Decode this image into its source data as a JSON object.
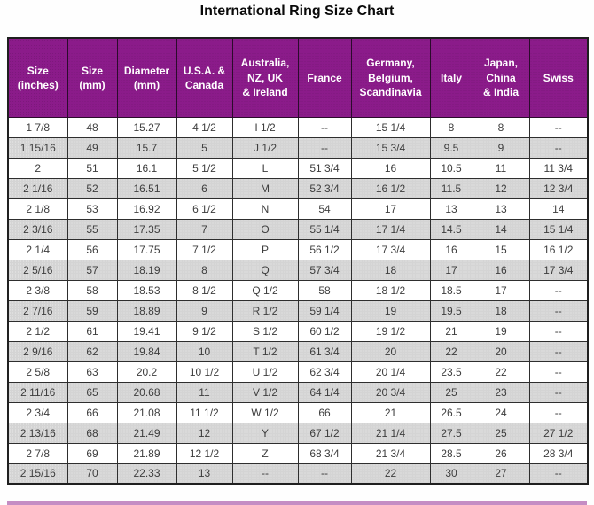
{
  "page_title": "International Ring Size Chart",
  "chart_data": {
    "type": "table",
    "title": "International Ring Size Chart",
    "columns": [
      "Size\n(inches)",
      "Size\n(mm)",
      "Diameter\n(mm)",
      "U.S.A. &\nCanada",
      "Australia,\nNZ, UK\n& Ireland",
      "France",
      "Germany,\nBelgium,\nScandinavia",
      "Italy",
      "Japan,\nChina\n& India",
      "Swiss"
    ],
    "rows": [
      [
        "1 7/8",
        "48",
        "15.27",
        "4 1/2",
        "I 1/2",
        "--",
        "15 1/4",
        "8",
        "8",
        "--"
      ],
      [
        "1 15/16",
        "49",
        "15.7",
        "5",
        "J 1/2",
        "--",
        "15 3/4",
        "9.5",
        "9",
        "--"
      ],
      [
        "2",
        "51",
        "16.1",
        "5 1/2",
        "L",
        "51 3/4",
        "16",
        "10.5",
        "11",
        "11 3/4"
      ],
      [
        "2 1/16",
        "52",
        "16.51",
        "6",
        "M",
        "52 3/4",
        "16 1/2",
        "11.5",
        "12",
        "12 3/4"
      ],
      [
        "2 1/8",
        "53",
        "16.92",
        "6 1/2",
        "N",
        "54",
        "17",
        "13",
        "13",
        "14"
      ],
      [
        "2 3/16",
        "55",
        "17.35",
        "7",
        "O",
        "55 1/4",
        "17 1/4",
        "14.5",
        "14",
        "15 1/4"
      ],
      [
        "2 1/4",
        "56",
        "17.75",
        "7 1/2",
        "P",
        "56 1/2",
        "17 3/4",
        "16",
        "15",
        "16 1/2"
      ],
      [
        "2 5/16",
        "57",
        "18.19",
        "8",
        "Q",
        "57 3/4",
        "18",
        "17",
        "16",
        "17 3/4"
      ],
      [
        "2 3/8",
        "58",
        "18.53",
        "8 1/2",
        "Q 1/2",
        "58",
        "18 1/2",
        "18.5",
        "17",
        "--"
      ],
      [
        "2 7/16",
        "59",
        "18.89",
        "9",
        "R 1/2",
        "59 1/4",
        "19",
        "19.5",
        "18",
        "--"
      ],
      [
        "2 1/2",
        "61",
        "19.41",
        "9 1/2",
        "S 1/2",
        "60 1/2",
        "19 1/2",
        "21",
        "19",
        "--"
      ],
      [
        "2 9/16",
        "62",
        "19.84",
        "10",
        "T 1/2",
        "61 3/4",
        "20",
        "22",
        "20",
        "--"
      ],
      [
        "2 5/8",
        "63",
        "20.2",
        "10 1/2",
        "U 1/2",
        "62 3/4",
        "20 1/4",
        "23.5",
        "22",
        "--"
      ],
      [
        "2 11/16",
        "65",
        "20.68",
        "11",
        "V 1/2",
        "64 1/4",
        "20 3/4",
        "25",
        "23",
        "--"
      ],
      [
        "2 3/4",
        "66",
        "21.08",
        "11 1/2",
        "W 1/2",
        "66",
        "21",
        "26.5",
        "24",
        "--"
      ],
      [
        "2 13/16",
        "68",
        "21.49",
        "12",
        "Y",
        "67 1/2",
        "21 1/4",
        "27.5",
        "25",
        "27 1/2"
      ],
      [
        "2 7/8",
        "69",
        "21.89",
        "12 1/2",
        "Z",
        "68 3/4",
        "21 3/4",
        "28.5",
        "26",
        "28 3/4"
      ],
      [
        "2 15/16",
        "70",
        "22.33",
        "13",
        "--",
        "--",
        "22",
        "30",
        "27",
        "--"
      ]
    ],
    "layout": {
      "legend": "none",
      "grid": "table-borders",
      "header_position": "top"
    }
  },
  "colors": {
    "header_bg": "#8b1b8a",
    "header_text": "#ffffff",
    "row_bg": "#ffffff",
    "row_alt_bg": "#d4d4d4",
    "cell_text": "#3d3d3d",
    "border": "#2e2e2e",
    "title_text": "#0a0a0a"
  }
}
